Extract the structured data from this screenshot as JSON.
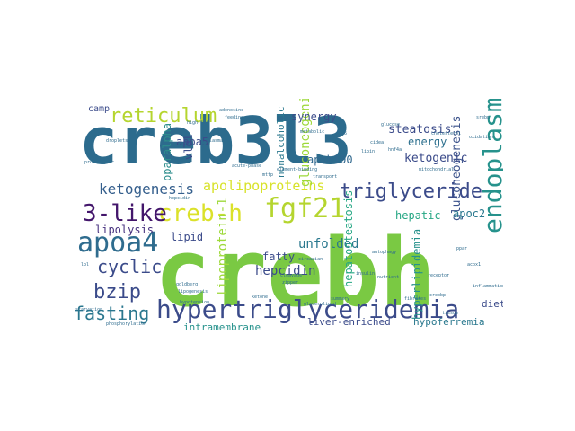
{
  "words": [
    {
      "text": "creb3l3",
      "color": "#2c6b8d"
    },
    {
      "text": "crebh",
      "color": "#7ac943"
    },
    {
      "text": "hypertriglyceridemia",
      "color": "#3b4b8a"
    },
    {
      "text": "endoplasmic",
      "color": "#26928c"
    },
    {
      "text": "reticulum",
      "color": "#b5d52f"
    },
    {
      "text": "creb-h",
      "color": "#dbe12a"
    },
    {
      "text": "fgf21",
      "color": "#b5d52f"
    },
    {
      "text": "apoa4",
      "color": "#2f6c8e"
    },
    {
      "text": "triglyceride",
      "color": "#3b4b8a"
    },
    {
      "text": "3-like",
      "color": "#43166b"
    },
    {
      "text": "ketogenesis",
      "color": "#355f8d"
    },
    {
      "text": "bzip",
      "color": "#3b4b8a"
    },
    {
      "text": "cyclic",
      "color": "#3b4b8a"
    },
    {
      "text": "fasting",
      "color": "#2a778e"
    },
    {
      "text": "apolipoproteins",
      "color": "#d8e22a"
    },
    {
      "text": "lipoprotein-1",
      "color": "#9ed93a"
    },
    {
      "text": "gluconeogenic",
      "color": "#9ed93a"
    },
    {
      "text": "gluconeogenesis",
      "color": "#3b528b"
    },
    {
      "text": "lipolysis",
      "color": "#46307e"
    },
    {
      "text": "hepcidin",
      "color": "#3b4b8a"
    },
    {
      "text": "nonalcoholic",
      "color": "#2a788e"
    },
    {
      "text": "steatosis",
      "color": "#3b4b8a"
    },
    {
      "text": "ketogenic",
      "color": "#3b4b8a"
    },
    {
      "text": "energy",
      "color": "#2d708e"
    },
    {
      "text": "synergy",
      "color": "#3b4b8a"
    },
    {
      "text": "apob100",
      "color": "#31688e"
    },
    {
      "text": "unfolded",
      "color": "#2a788e"
    },
    {
      "text": "apoc2",
      "color": "#2a788e"
    },
    {
      "text": "hepatic",
      "color": "#26a784"
    },
    {
      "text": "hyperlipidemia",
      "color": "#26928c"
    },
    {
      "text": "hepatosteatosis",
      "color": "#26a784"
    },
    {
      "text": "lipid",
      "color": "#3b4b8a"
    },
    {
      "text": "fatty",
      "color": "#3b4b8a"
    },
    {
      "text": "apoa5",
      "color": "#3b4b8a"
    },
    {
      "text": "pparalpha",
      "color": "#2c8d8c"
    },
    {
      "text": "vldl",
      "color": "#3b4b8a"
    },
    {
      "text": "intramembrane",
      "color": "#26928c"
    },
    {
      "text": "liver-enriched",
      "color": "#3b4b8a"
    },
    {
      "text": "hypoferremia",
      "color": "#2a788e"
    },
    {
      "text": "diet",
      "color": "#3b4b8a"
    },
    {
      "text": "camp",
      "color": "#3b4b8a"
    },
    {
      "text": "element-binding",
      "color": "#2f6c8e"
    },
    {
      "text": "cleavage",
      "color": "#2f6c8e"
    },
    {
      "text": "zipper",
      "color": "#2f6c8e"
    },
    {
      "text": "hepcidin",
      "color": "#2f6c8e"
    },
    {
      "text": "circadian",
      "color": "#2f6c8e"
    },
    {
      "text": "transport",
      "color": "#2f6c8e"
    },
    {
      "text": "goldberg",
      "color": "#2f6c8e"
    },
    {
      "text": "lipogenesis",
      "color": "#2f6c8e"
    },
    {
      "text": "adenosine",
      "color": "#2f6c8e"
    },
    {
      "text": "feeding",
      "color": "#2f6c8e"
    },
    {
      "text": "high-fat",
      "color": "#2f6c8e"
    },
    {
      "text": "plasma",
      "color": "#2f6c8e"
    },
    {
      "text": "metabolic",
      "color": "#2f6c8e"
    },
    {
      "text": "autophagy",
      "color": "#2f6c8e"
    },
    {
      "text": "insulin",
      "color": "#2f6c8e"
    },
    {
      "text": "summary",
      "color": "#2f6c8e"
    },
    {
      "text": "nutrient",
      "color": "#2f6c8e"
    },
    {
      "text": "acute-phase",
      "color": "#2f6c8e"
    },
    {
      "text": "droplets",
      "color": "#2f6c8e"
    },
    {
      "text": "starvation",
      "color": "#2f6c8e"
    },
    {
      "text": "hypotension",
      "color": "#2f6c8e"
    },
    {
      "text": "phosphorylation",
      "color": "#2f6c8e"
    },
    {
      "text": "cholesterol",
      "color": "#2f6c8e"
    },
    {
      "text": "proteolytic",
      "color": "#2f6c8e"
    },
    {
      "text": "mitochondrial",
      "color": "#2f6c8e"
    },
    {
      "text": "glycerolipid",
      "color": "#2f6c8e"
    },
    {
      "text": "oxidation",
      "color": "#2f6c8e"
    },
    {
      "text": "inflammation",
      "color": "#2f6c8e"
    },
    {
      "text": "glucose",
      "color": "#2f6c8e"
    },
    {
      "text": "receptor",
      "color": "#2f6c8e"
    },
    {
      "text": "atf6",
      "color": "#2f6c8e"
    },
    {
      "text": "crebbp",
      "color": "#2f6c8e"
    },
    {
      "text": "ppar",
      "color": "#2f6c8e"
    },
    {
      "text": "acox1",
      "color": "#2f6c8e"
    },
    {
      "text": "cidea",
      "color": "#2f6c8e"
    },
    {
      "text": "hnf4a",
      "color": "#2f6c8e"
    },
    {
      "text": "lpl",
      "color": "#2f6c8e"
    },
    {
      "text": "mttp",
      "color": "#2f6c8e"
    },
    {
      "text": "srebp",
      "color": "#2f6c8e"
    },
    {
      "text": "lipin",
      "color": "#2f6c8e"
    },
    {
      "text": "fibrates",
      "color": "#2f6c8e"
    },
    {
      "text": "ketone",
      "color": "#2f6c8e"
    },
    {
      "text": "tissue",
      "color": "#2f6c8e"
    }
  ]
}
